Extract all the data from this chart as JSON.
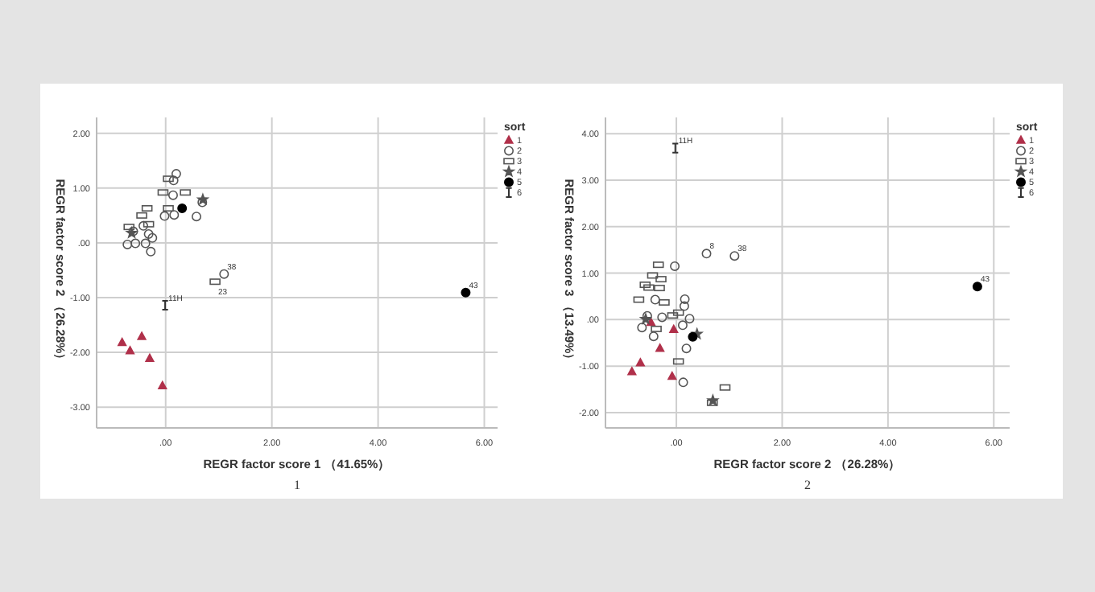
{
  "chart_data": [
    {
      "type": "scatter",
      "xlabel": "REGR factor score  1 （41.65%）",
      "ylabel": "REGR factor score  2 （26.28%）",
      "legend_title": "sort",
      "legend": "right",
      "grid": true,
      "xlim": [
        -1.3,
        6.25
      ],
      "ylim": [
        -3.38,
        2.29
      ],
      "xticks": [
        {
          "value": 0,
          "label": ".00"
        },
        {
          "value": 2,
          "label": "2.00"
        },
        {
          "value": 4,
          "label": "4.00"
        },
        {
          "value": 6,
          "label": "6.00"
        }
      ],
      "yticks": [
        {
          "value": -3,
          "label": "-3.00"
        },
        {
          "value": -2,
          "label": "-2.00"
        },
        {
          "value": -1,
          "label": "-1.00"
        },
        {
          "value": 0,
          "label": ".00"
        },
        {
          "value": 1,
          "label": "1.00"
        },
        {
          "value": 2,
          "label": "2.00"
        }
      ],
      "series": [
        {
          "name": "1",
          "color": "#b0304a",
          "marker": "triangle",
          "x": [
            -0.82,
            -0.67,
            -0.45,
            -0.3,
            -0.06
          ],
          "values": [
            -1.82,
            -1.97,
            -1.71,
            -2.11,
            -2.61
          ]
        },
        {
          "name": "2",
          "color": "#555555",
          "marker": "circle",
          "x": [
            0.2,
            0.15,
            0.14,
            -0.02,
            0.16,
            0.58,
            0.69,
            -0.42,
            -0.61,
            -0.32,
            -0.25,
            -0.72,
            -0.57,
            -0.38,
            -0.28,
            1.1
          ],
          "values": [
            1.26,
            1.14,
            0.87,
            0.49,
            0.51,
            0.48,
            0.74,
            0.31,
            0.21,
            0.16,
            0.09,
            -0.03,
            -0.01,
            -0.01,
            -0.16,
            -0.57
          ]
        },
        {
          "name": "3",
          "color": "#555555",
          "marker": "square",
          "x": [
            0.05,
            -0.05,
            0.37,
            0.05,
            -0.35,
            -0.45,
            -0.32,
            -0.69,
            0.93
          ],
          "values": [
            1.17,
            0.92,
            0.92,
            0.63,
            0.63,
            0.5,
            0.34,
            0.29,
            -0.71
          ]
        },
        {
          "name": "4",
          "color": "#555555",
          "marker": "star",
          "x": [
            0.7,
            -0.64
          ],
          "values": [
            0.79,
            0.18
          ]
        },
        {
          "name": "5",
          "color": "#000000",
          "marker": "circle",
          "x": [
            0.31,
            5.65
          ],
          "values": [
            0.63,
            -0.91
          ]
        },
        {
          "name": "6",
          "color": "#333333",
          "marker": "cross",
          "x": [
            -0.01
          ],
          "values": [
            -1.14
          ]
        }
      ],
      "annotations": [
        {
          "text": "38",
          "x": 1.1,
          "y": -0.57
        },
        {
          "text": "23",
          "x": 0.93,
          "y": -0.71
        },
        {
          "text": "11H",
          "x": -0.01,
          "y": -1.14
        },
        {
          "text": "43",
          "x": 5.65,
          "y": -0.91
        },
        "1"
      ]
    },
    {
      "type": "scatter",
      "xlabel": "REGR factor score  2 （26.28%）",
      "ylabel": "REGR factor score  3 （13.49%）",
      "legend_title": "sort",
      "legend": "right",
      "grid": true,
      "xlim": [
        -1.34,
        6.3
      ],
      "ylim": [
        -2.33,
        4.35
      ],
      "xticks": [
        {
          "value": 0,
          "label": ".00"
        },
        {
          "value": 2,
          "label": "2.00"
        },
        {
          "value": 4,
          "label": "4.00"
        },
        {
          "value": 6,
          "label": "6.00"
        }
      ],
      "yticks": [
        {
          "value": -2,
          "label": "-2.00"
        },
        {
          "value": -1,
          "label": "-1.00"
        },
        {
          "value": 0,
          "label": ".00"
        },
        {
          "value": 1,
          "label": "1.00"
        },
        {
          "value": 2,
          "label": "2.00"
        },
        {
          "value": 3,
          "label": "3.00"
        },
        {
          "value": 4,
          "label": "4.00"
        }
      ],
      "series": [
        {
          "name": "1",
          "color": "#b0304a",
          "marker": "triangle",
          "x": [
            -0.84,
            -0.68,
            -0.31,
            -0.05,
            -0.08,
            -0.48
          ],
          "values": [
            -1.12,
            -0.93,
            -0.62,
            -0.21,
            -1.22,
            -0.06
          ]
        },
        {
          "name": "2",
          "color": "#555555",
          "marker": "circle",
          "x": [
            0.57,
            1.1,
            -0.03,
            0.16,
            0.15,
            -0.4,
            -0.27,
            0.25,
            0.12,
            -0.43,
            -0.65,
            0.19,
            0.13,
            -0.55
          ],
          "values": [
            1.42,
            1.37,
            1.15,
            0.44,
            0.29,
            0.43,
            0.05,
            0.02,
            -0.12,
            -0.36,
            -0.17,
            -0.62,
            -1.35,
            0.08
          ]
        },
        {
          "name": "3",
          "color": "#555555",
          "marker": "square",
          "x": [
            -0.34,
            -0.45,
            -0.29,
            -0.32,
            -0.59,
            -0.52,
            -0.23,
            0.04,
            -0.07,
            -0.71,
            0.04,
            0.92,
            0.68,
            -0.38
          ],
          "values": [
            1.18,
            0.95,
            0.87,
            0.68,
            0.75,
            0.69,
            0.37,
            0.15,
            0.09,
            0.43,
            -0.9,
            -1.46,
            -1.79,
            -0.2
          ]
        },
        {
          "name": "4",
          "color": "#555555",
          "marker": "star",
          "x": [
            0.69,
            -0.58,
            0.39
          ],
          "values": [
            -1.74,
            0.01,
            -0.31
          ]
        },
        {
          "name": "5",
          "color": "#000000",
          "marker": "circle",
          "x": [
            0.31,
            5.69
          ],
          "values": [
            -0.37,
            0.71
          ]
        },
        {
          "name": "6",
          "color": "#333333",
          "marker": "cross",
          "x": [
            -0.02
          ],
          "values": [
            3.69
          ]
        }
      ],
      "annotations": [
        {
          "text": "11H",
          "x": -0.02,
          "y": 3.69
        },
        {
          "text": "8",
          "x": 0.57,
          "y": 1.42
        },
        {
          "text": "38",
          "x": 1.1,
          "y": 1.37
        },
        {
          "text": "43",
          "x": 5.69,
          "y": 0.71
        },
        "2"
      ]
    }
  ]
}
